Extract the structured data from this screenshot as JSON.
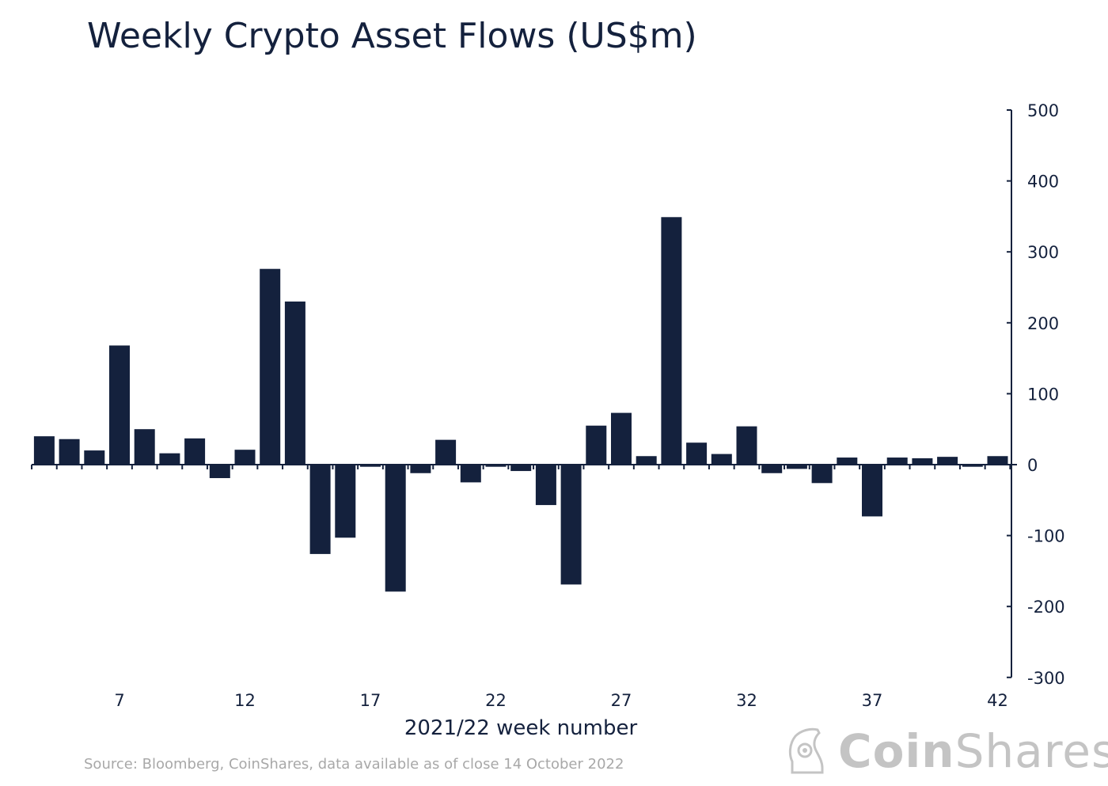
{
  "chart_data": {
    "type": "bar",
    "title": "Weekly Crypto Asset Flows (US$m)",
    "xlabel": "2021/22 week number",
    "ylabel": "",
    "ylim": [
      -300,
      500
    ],
    "yticks": [
      500,
      400,
      300,
      200,
      100,
      0,
      -100,
      -200,
      -300
    ],
    "xticks": [
      7,
      12,
      17,
      22,
      27,
      32,
      37,
      42
    ],
    "grid": false,
    "y_axis_position": "right",
    "bar_color": "#14213d",
    "categories": [
      4,
      5,
      6,
      7,
      8,
      9,
      10,
      11,
      12,
      13,
      14,
      15,
      16,
      17,
      18,
      19,
      20,
      21,
      22,
      23,
      24,
      25,
      26,
      27,
      28,
      29,
      30,
      31,
      32,
      33,
      34,
      35,
      36,
      37,
      38,
      39,
      40,
      41,
      42
    ],
    "values": [
      40,
      36,
      20,
      168,
      50,
      16,
      37,
      -19,
      21,
      276,
      230,
      -126,
      -103,
      -3,
      -179,
      -12,
      35,
      -25,
      -3,
      -9,
      -57,
      -169,
      55,
      73,
      12,
      349,
      31,
      15,
      54,
      -12,
      -6,
      -26,
      10,
      -73,
      10,
      9,
      11,
      -3,
      12
    ]
  },
  "source": "Source: Bloomberg, CoinShares, data available as of close 14 October 2022",
  "logo": {
    "bold": "Coin",
    "light": "Shares"
  }
}
